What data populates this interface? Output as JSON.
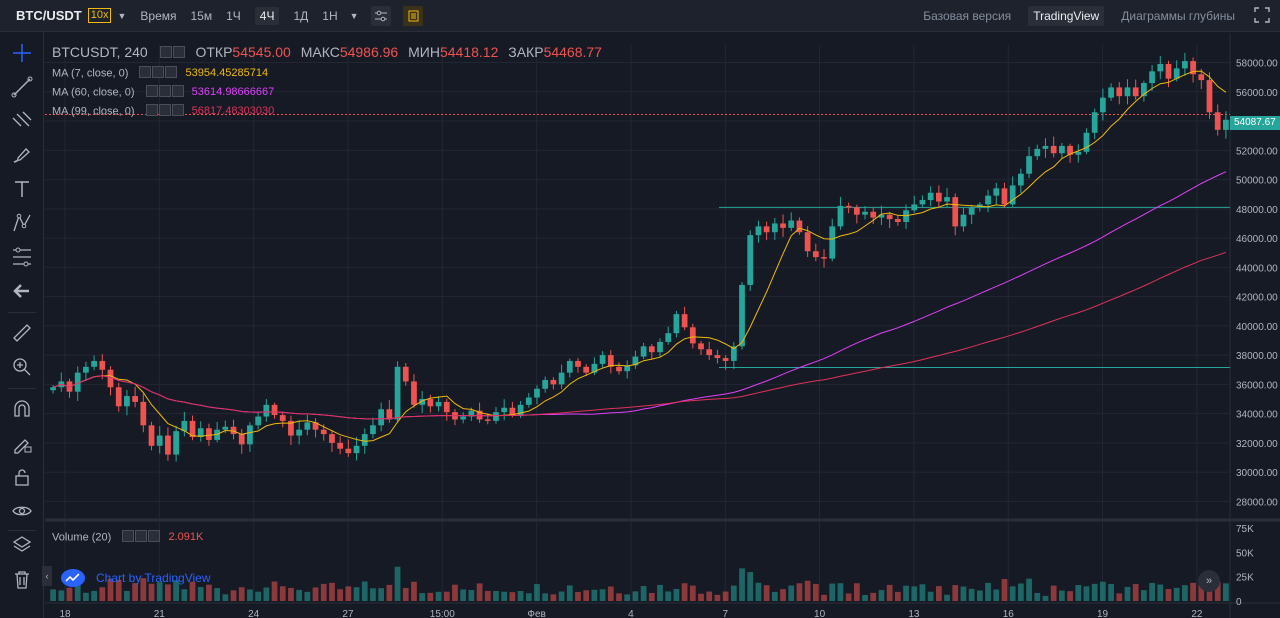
{
  "topbar": {
    "symbol": "BTC/USDT",
    "leverage": "10x",
    "timeframes": [
      {
        "label": "Время",
        "active": false
      },
      {
        "label": "15м",
        "active": false
      },
      {
        "label": "1Ч",
        "active": false
      },
      {
        "label": "4Ч",
        "active": true
      },
      {
        "label": "1Д",
        "active": false
      },
      {
        "label": "1Н",
        "active": false
      }
    ],
    "views": [
      {
        "label": "Базовая версия",
        "active": false
      },
      {
        "label": "TradingView",
        "active": true
      },
      {
        "label": "Диаграммы глубины",
        "active": false
      }
    ]
  },
  "legend": {
    "name": "BTCUSDT, 240",
    "open_label": "ОТКР",
    "open": "54545.00",
    "high_label": "МАКС",
    "high": "54986.96",
    "low_label": "МИН",
    "low": "54418.12",
    "close_label": "ЗАКР",
    "close": "54468.77"
  },
  "indicators": [
    {
      "label": "MA (7, close, 0)",
      "value": "53954.45285714",
      "color": "#f0b90b"
    },
    {
      "label": "MA (60, close, 0)",
      "value": "53614.98666667",
      "color": "#e040fb"
    },
    {
      "label": "MA (99, close, 0)",
      "value": "56817.48303030",
      "color": "#e0325a"
    }
  ],
  "volume": {
    "label": "Volume (20)",
    "value": "2.091K"
  },
  "watermark": "Chart by TradingView",
  "price_scale": [
    "58000.00",
    "56000.00",
    "54000.00",
    "52000.00",
    "50000.00",
    "48000.00",
    "46000.00",
    "44000.00",
    "42000.00",
    "40000.00",
    "38000.00",
    "36000.00",
    "34000.00",
    "32000.00",
    "30000.00",
    "28000.00"
  ],
  "current_price": "54087.67",
  "volume_scale": [
    "75K",
    "50K",
    "25K",
    "0"
  ],
  "time_labels": [
    "18",
    "21",
    "24",
    "27",
    "15:00",
    "Фев",
    "4",
    "7",
    "10",
    "13",
    "16",
    "19",
    "22"
  ],
  "colors": {
    "up": "#26a69a",
    "down": "#ef5350",
    "ma7": "#f0b90b",
    "ma60": "#e040fb",
    "ma99": "#e0325a",
    "bg": "#161a25",
    "grid": "#232733"
  },
  "chart_data": {
    "type": "candlestick",
    "interval": "4h",
    "ylim": [
      27000,
      59200
    ],
    "volume_ylim": [
      0,
      78000
    ],
    "close_series": [
      35800,
      36200,
      35500,
      36800,
      37200,
      37600,
      37000,
      35800,
      34500,
      35200,
      34800,
      33200,
      31800,
      32500,
      31200,
      32800,
      33500,
      32400,
      33000,
      32200,
      32900,
      33100,
      32600,
      31900,
      33200,
      33800,
      34600,
      33900,
      33500,
      32500,
      32900,
      33400,
      32900,
      32600,
      32000,
      31600,
      31300,
      31800,
      32600,
      33200,
      34300,
      33600,
      37200,
      36200,
      34600,
      35000,
      34500,
      34800,
      34100,
      33600,
      33800,
      34200,
      33600,
      33500,
      34100,
      34400,
      33900,
      34600,
      35100,
      35700,
      36300,
      36000,
      36800,
      37600,
      37200,
      36800,
      37400,
      38000,
      37200,
      36900,
      37300,
      37900,
      38600,
      38200,
      38900,
      39500,
      40800,
      39900,
      38800,
      38400,
      38000,
      37800,
      37600,
      38600,
      42800,
      46200,
      46800,
      46400,
      47000,
      46700,
      47200,
      46400,
      45100,
      44700,
      44600,
      46800,
      48200,
      48100,
      47600,
      47800,
      47400,
      47600,
      47300,
      47100,
      47900,
      48300,
      48600,
      49100,
      48500,
      48800,
      46800,
      47600,
      48100,
      48300,
      48900,
      49400,
      48300,
      49600,
      50400,
      51600,
      52100,
      52300,
      51800,
      52300,
      51700,
      51900,
      53200,
      54600,
      55600,
      56300,
      55700,
      56300,
      55700,
      56600,
      57400,
      57900,
      56900,
      57600,
      58100,
      57200,
      56800,
      54600,
      53400,
      54088
    ],
    "horizontal_lines": [
      {
        "price": 48100,
        "color": "#26a69a"
      },
      {
        "price": 37150,
        "color": "#26a69a"
      },
      {
        "price": 54450,
        "color": "#ef5350"
      }
    ]
  }
}
